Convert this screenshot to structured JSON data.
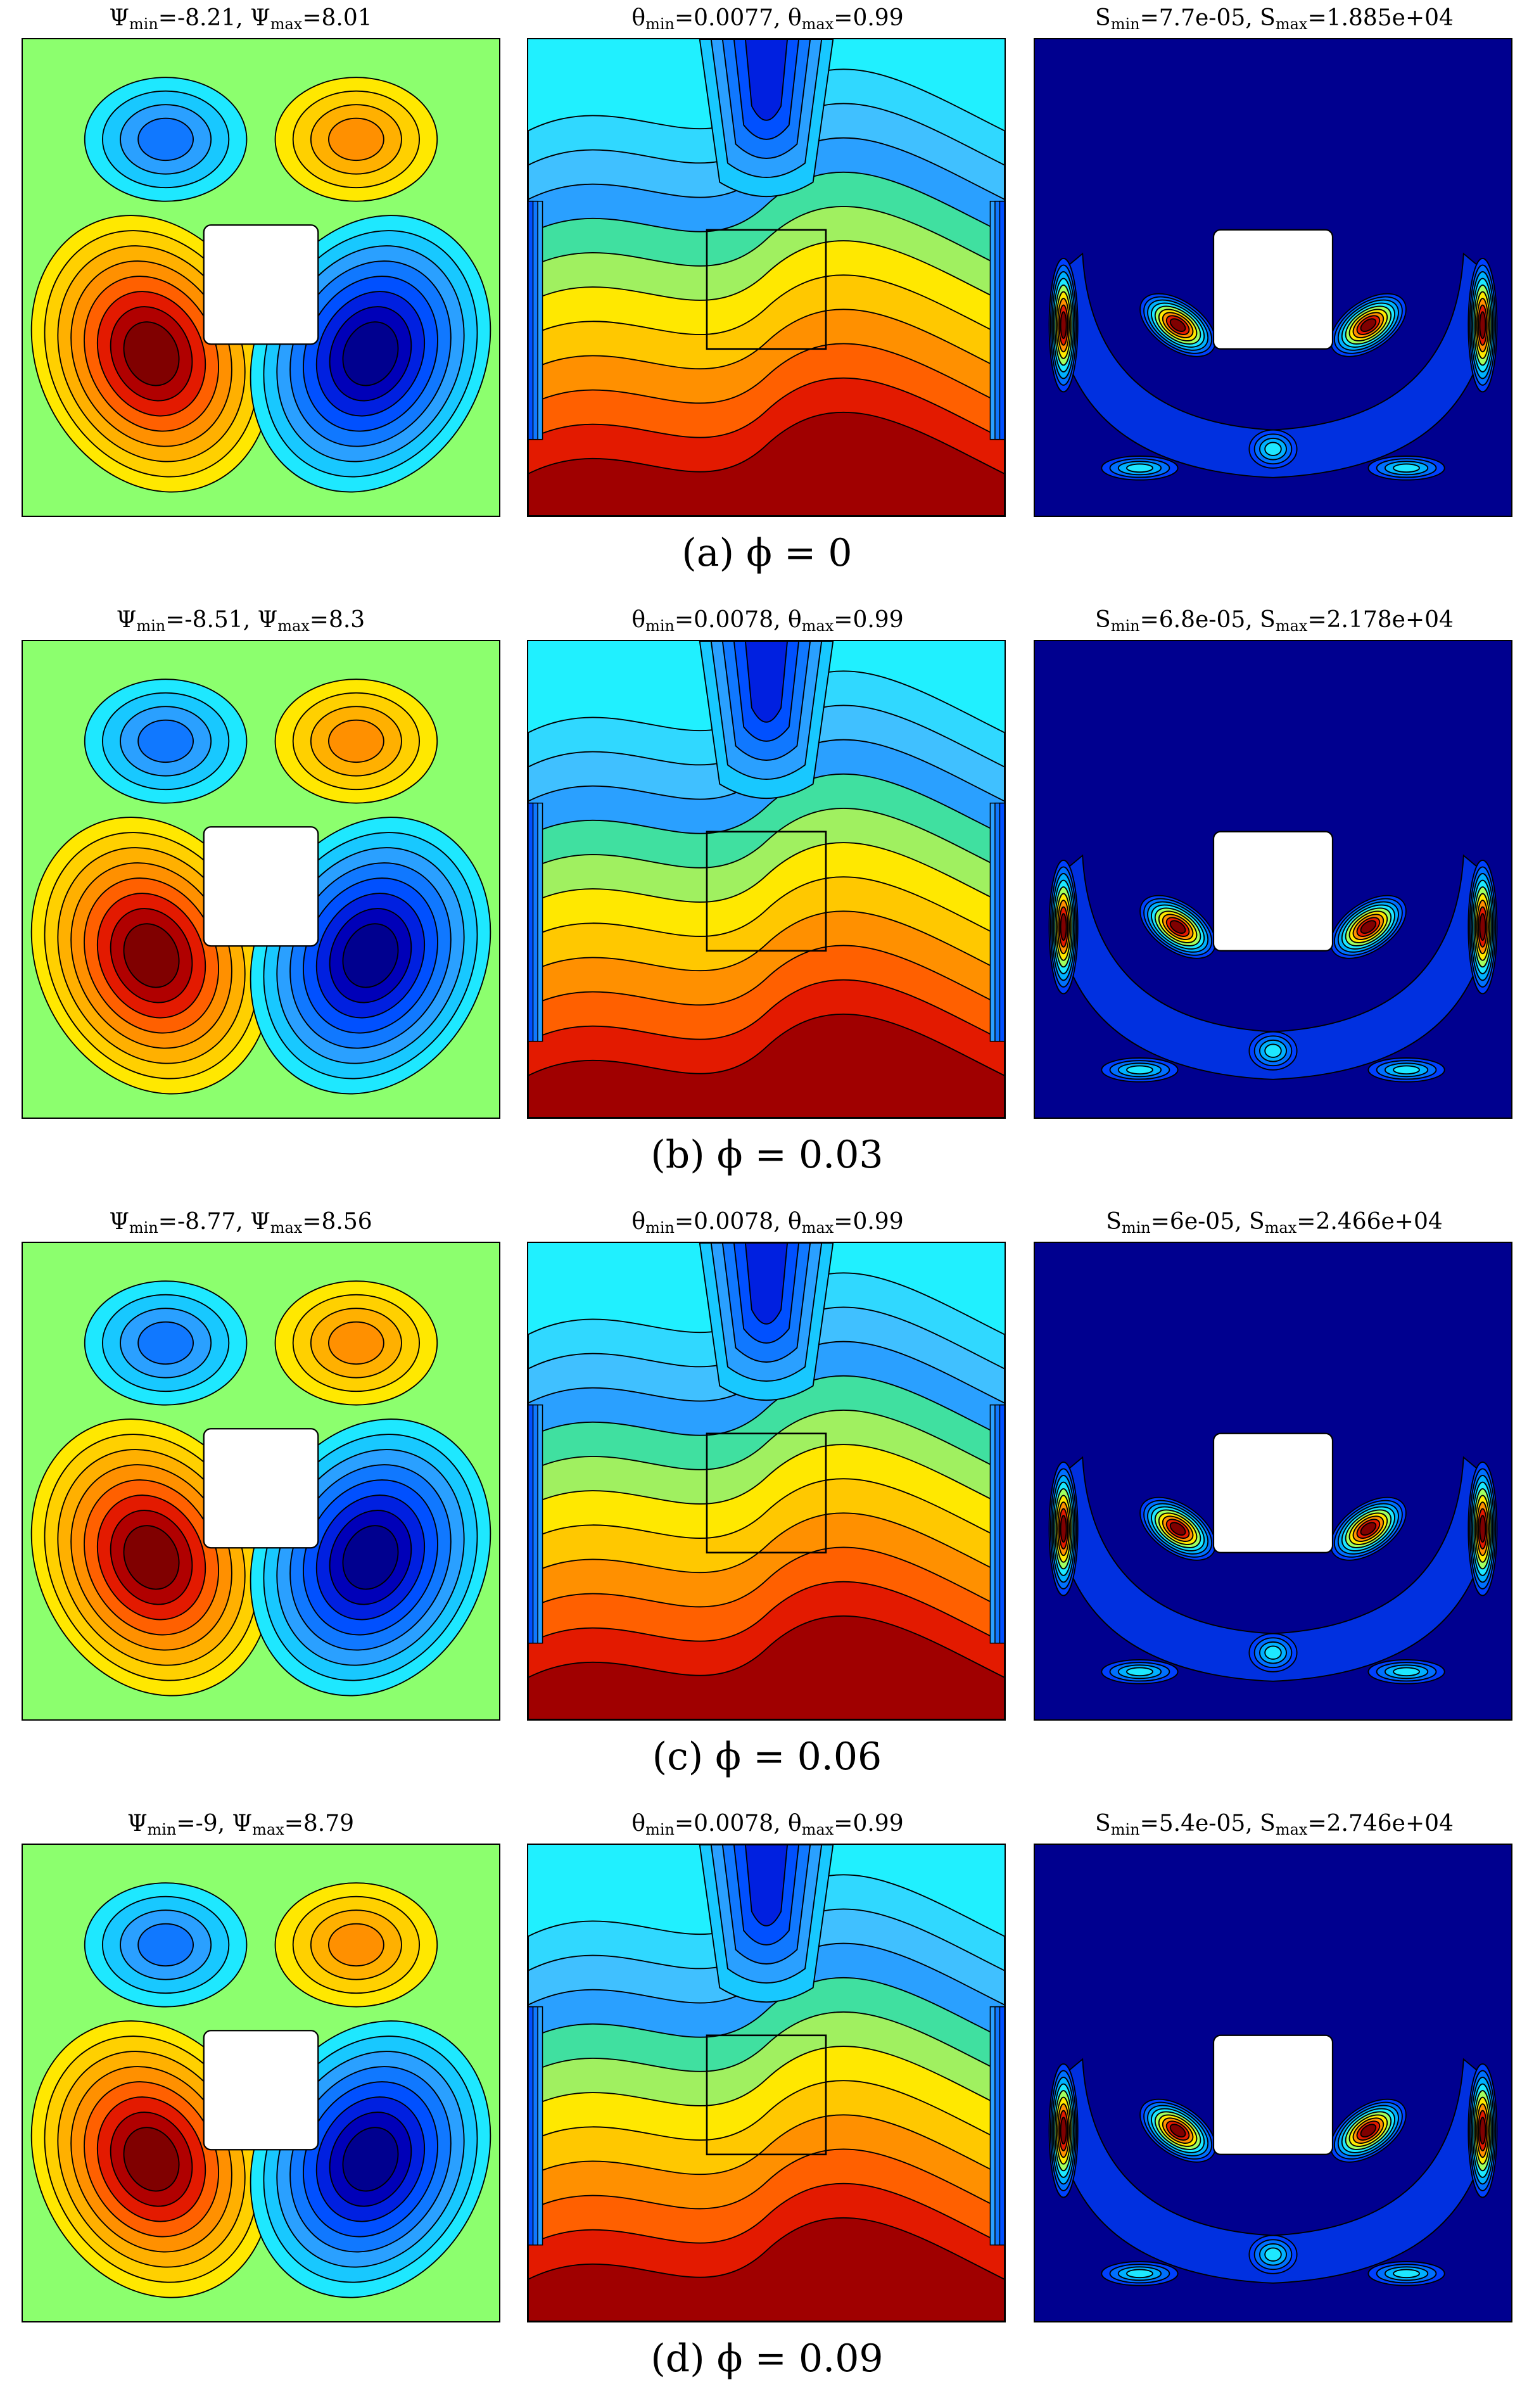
{
  "rows": [
    {
      "caption": "(a) ϕ = 0",
      "psi": {
        "min_label": "Ψ",
        "min_sub": "min",
        "min_val": "=-8.21, ",
        "max_label": "Ψ",
        "max_sub": "max",
        "max_val": "=8.01"
      },
      "theta": {
        "min_label": "θ",
        "min_sub": "min",
        "min_val": "=0.0077, ",
        "max_label": "θ",
        "max_sub": "max",
        "max_val": "=0.99"
      },
      "S": {
        "min_label": "S",
        "min_sub": "min",
        "min_val": "=7.7e-05, ",
        "max_label": "S",
        "max_sub": "max",
        "max_val": "=1.885e+04"
      }
    },
    {
      "caption": "(b) ϕ = 0.03",
      "psi": {
        "min_label": "Ψ",
        "min_sub": "min",
        "min_val": "=-8.51, ",
        "max_label": "Ψ",
        "max_sub": "max",
        "max_val": "=8.3"
      },
      "theta": {
        "min_label": "θ",
        "min_sub": "min",
        "min_val": "=0.0078, ",
        "max_label": "θ",
        "max_sub": "max",
        "max_val": "=0.99"
      },
      "S": {
        "min_label": "S",
        "min_sub": "min",
        "min_val": "=6.8e-05, ",
        "max_label": "S",
        "max_sub": "max",
        "max_val": "=2.178e+04"
      }
    },
    {
      "caption": "(c) ϕ = 0.06",
      "psi": {
        "min_label": "Ψ",
        "min_sub": "min",
        "min_val": "=-8.77, ",
        "max_label": "Ψ",
        "max_sub": "max",
        "max_val": "=8.56"
      },
      "theta": {
        "min_label": "θ",
        "min_sub": "min",
        "min_val": "=0.0078, ",
        "max_label": "θ",
        "max_sub": "max",
        "max_val": "=0.99"
      },
      "S": {
        "min_label": "S",
        "min_sub": "min",
        "min_val": "=6e-05, ",
        "max_label": "S",
        "max_sub": "max",
        "max_val": "=2.466e+04"
      }
    },
    {
      "caption": "(d) ϕ = 0.09",
      "psi": {
        "min_label": "Ψ",
        "min_sub": "min",
        "min_val": "=-9, ",
        "max_label": "Ψ",
        "max_sub": "max",
        "max_val": "=8.79"
      },
      "theta": {
        "min_label": "θ",
        "min_sub": "min",
        "min_val": "=0.0078, ",
        "max_label": "θ",
        "max_sub": "max",
        "max_val": "=0.99"
      },
      "S": {
        "min_label": "S",
        "min_sub": "min",
        "min_val": "=5.4e-05, ",
        "max_label": "S",
        "max_sub": "max",
        "max_val": "=2.746e+04"
      }
    }
  ],
  "colors": {
    "dark_red": "#800000",
    "red": "#e31a00",
    "orange": "#ff9000",
    "yellow": "#ffe800",
    "light_green": "#8cff6e",
    "cyan": "#1ee8ff",
    "light_blue": "#2aa0ff",
    "blue": "#0050ff",
    "dark_blue": "#00008f",
    "line": "#000000"
  }
}
